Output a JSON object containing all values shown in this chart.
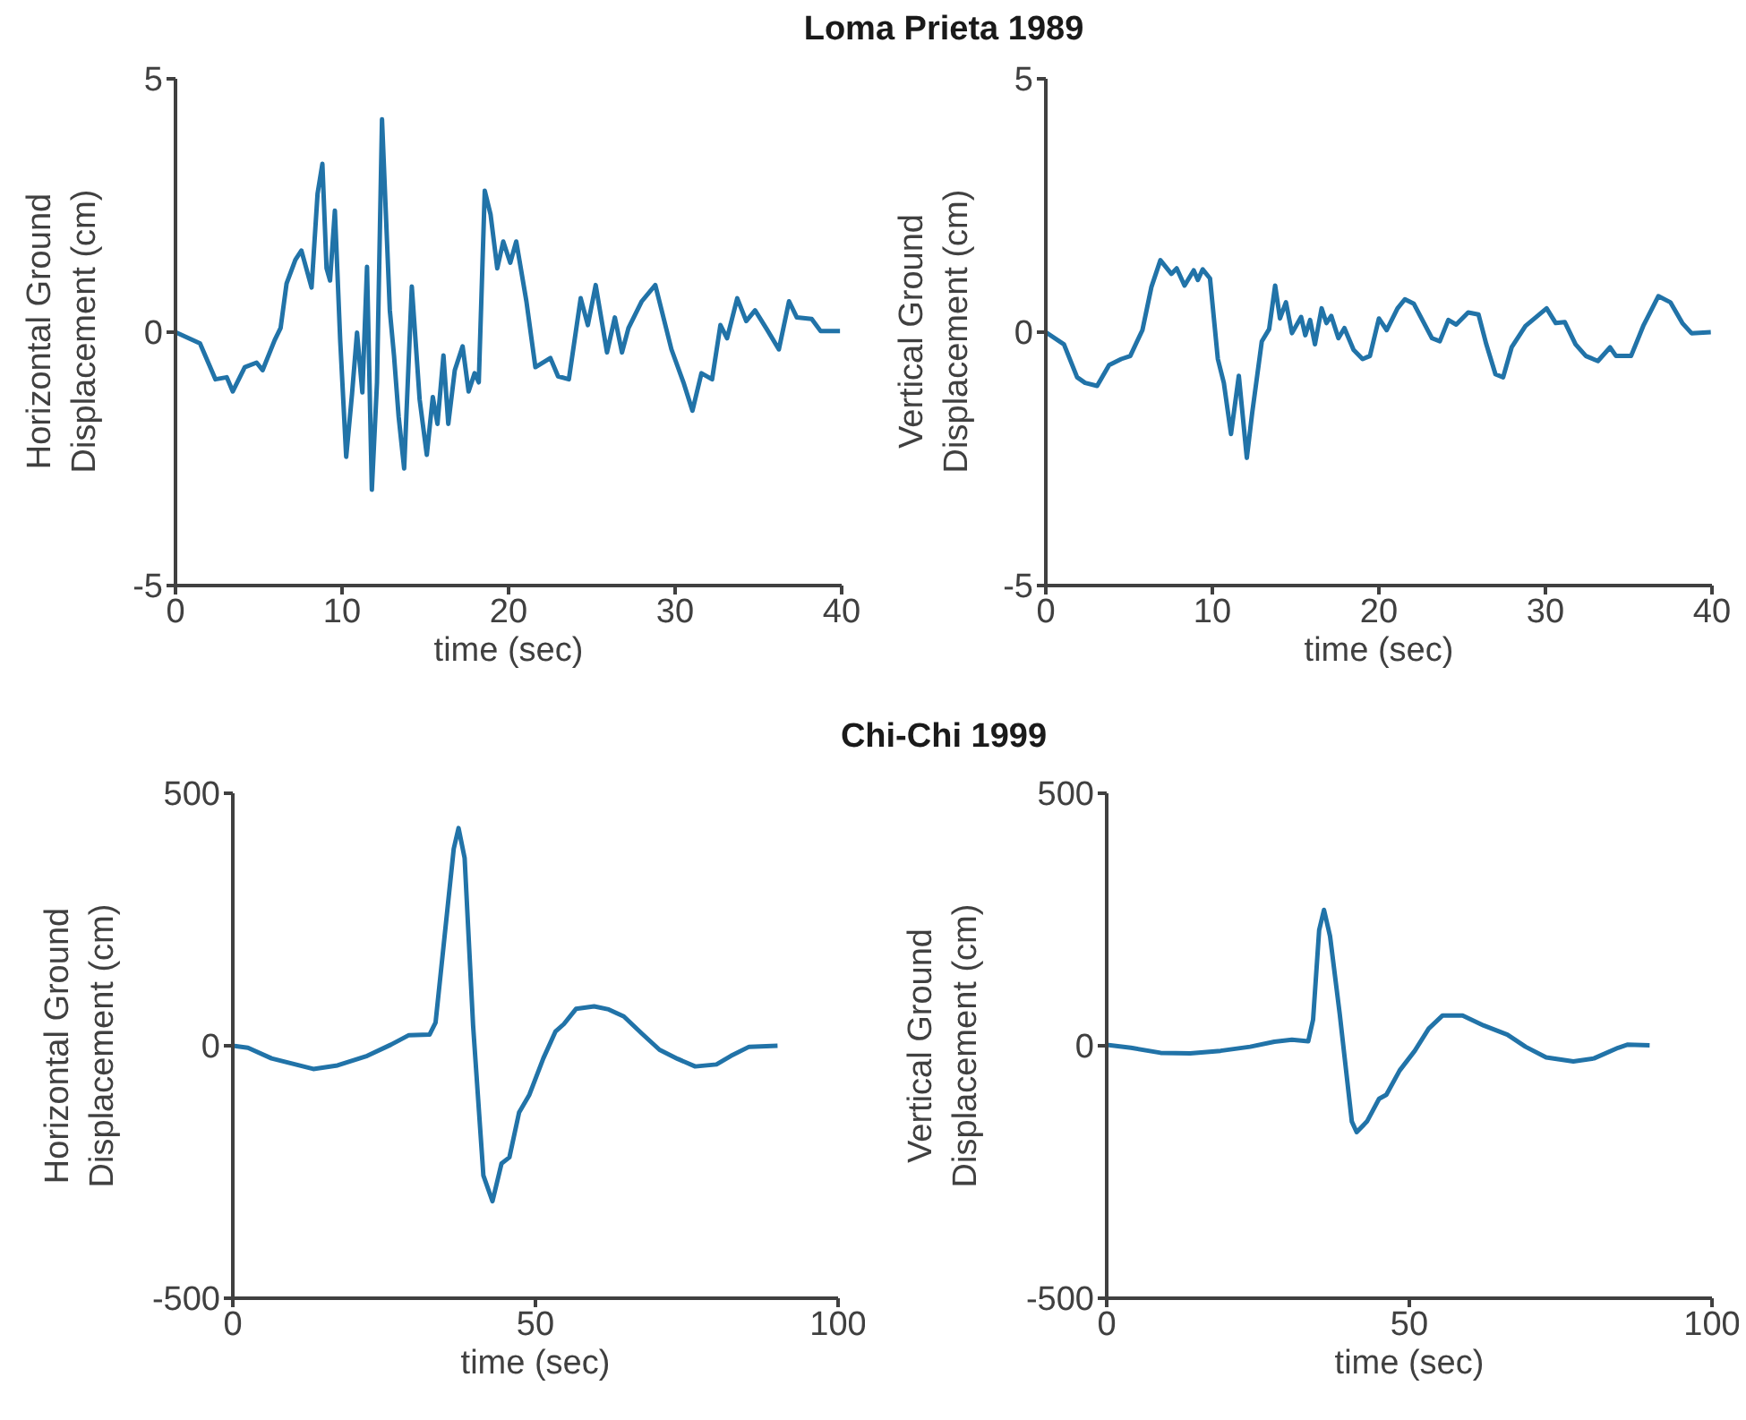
{
  "chart_data": [
    {
      "type": "line",
      "title": "Loma Prieta 1989",
      "xlabel": "time (sec)",
      "ylabel": "Horizontal Ground Displacement (cm)",
      "color": "#2173a8",
      "xlim": [
        0,
        40
      ],
      "ylim": [
        -5,
        5
      ],
      "xticks": [
        0,
        10,
        20,
        30,
        40
      ],
      "yticks": [
        -5,
        0,
        5
      ],
      "x": [
        0,
        1.47,
        2.4,
        3.08,
        3.44,
        4.16,
        4.87,
        5.23,
        5.95,
        6.31,
        6.67,
        7.2,
        7.56,
        8.17,
        8.53,
        8.82,
        9.07,
        9.28,
        9.57,
        9.89,
        10.25,
        10.6,
        10.9,
        11.22,
        11.5,
        11.79,
        12.1,
        12.4,
        12.87,
        13.12,
        13.4,
        13.73,
        14.19,
        14.66,
        15.09,
        15.45,
        15.73,
        16.09,
        16.38,
        16.77,
        17.24,
        17.6,
        17.96,
        18.21,
        18.57,
        18.92,
        19.32,
        19.68,
        20.1,
        20.46,
        21.07,
        21.61,
        22.51,
        22.97,
        23.62,
        24.33,
        24.76,
        25.23,
        25.91,
        26.38,
        26.81,
        27.2,
        28,
        28.81,
        29.78,
        30.5,
        31.04,
        31.58,
        32.22,
        32.72,
        33.12,
        33.73,
        34.27,
        34.8,
        35.52,
        36.23,
        36.84,
        37.31,
        38.2,
        38.74,
        39.9
      ],
      "values": [
        0,
        -0.22,
        -0.93,
        -0.89,
        -1.17,
        -0.69,
        -0.6,
        -0.75,
        -0.16,
        0.08,
        0.96,
        1.43,
        1.61,
        0.88,
        2.73,
        3.32,
        1.26,
        1.02,
        2.4,
        -0.16,
        -2.46,
        -1.22,
        -0.01,
        -1.19,
        1.29,
        -3.11,
        -0.99,
        4.2,
        0.43,
        -0.46,
        -1.67,
        -2.69,
        0.9,
        -1.33,
        -2.42,
        -1.28,
        -1.81,
        -0.46,
        -1.81,
        -0.75,
        -0.28,
        -1.17,
        -0.81,
        -0.99,
        2.79,
        2.32,
        1.26,
        1.79,
        1.37,
        1.79,
        0.61,
        -0.69,
        -0.51,
        -0.87,
        -0.93,
        0.67,
        0.14,
        0.93,
        -0.4,
        0.29,
        -0.4,
        0.08,
        0.61,
        0.93,
        -0.34,
        -0.99,
        -1.55,
        -0.81,
        -0.93,
        0.14,
        -0.12,
        0.67,
        0.22,
        0.43,
        0.05,
        -0.34,
        0.61,
        0.29,
        0.26,
        0.02,
        0.02
      ]
    },
    {
      "type": "line",
      "xlabel": "time (sec)",
      "ylabel": "Vertical Ground Displacement (cm)",
      "color": "#2173a8",
      "xlim": [
        0,
        40
      ],
      "ylim": [
        -5,
        5
      ],
      "xticks": [
        0,
        10,
        20,
        30,
        40
      ],
      "yticks": [
        -5,
        0,
        5
      ],
      "x": [
        0,
        1.09,
        1.88,
        2.36,
        3.08,
        3.8,
        4.53,
        5.07,
        5.8,
        6.34,
        6.88,
        7.54,
        7.86,
        8.33,
        8.88,
        9.13,
        9.42,
        9.86,
        10.33,
        10.69,
        11.12,
        11.59,
        12.07,
        12.39,
        12.97,
        13.41,
        13.77,
        14.06,
        14.42,
        14.78,
        15.33,
        15.58,
        15.87,
        16.16,
        16.56,
        16.85,
        17.14,
        17.57,
        17.93,
        18.48,
        19.02,
        19.46,
        20,
        20.47,
        21.12,
        21.56,
        22.1,
        23.19,
        23.66,
        24.17,
        24.64,
        25.36,
        25.98,
        26.45,
        27,
        27.46,
        27.97,
        28.8,
        30.07,
        30.62,
        31.16,
        31.81,
        32.43,
        33.15,
        33.88,
        34.24,
        35.14,
        35.87,
        36.78,
        37.5,
        38.22,
        38.77,
        39.93
      ],
      "values": [
        0,
        -0.24,
        -0.89,
        -1,
        -1.06,
        -0.65,
        -0.53,
        -0.47,
        0.04,
        0.89,
        1.42,
        1.15,
        1.26,
        0.92,
        1.22,
        1.03,
        1.24,
        1.06,
        -0.53,
        -1,
        -2.01,
        -0.86,
        -2.48,
        -1.6,
        -0.18,
        0.06,
        0.92,
        0.27,
        0.59,
        -0.02,
        0.3,
        -0.06,
        0.24,
        -0.24,
        0.47,
        0.18,
        0.32,
        -0.12,
        0.08,
        -0.35,
        -0.53,
        -0.47,
        0.27,
        0.04,
        0.47,
        0.65,
        0.56,
        -0.12,
        -0.18,
        0.24,
        0.15,
        0.39,
        0.35,
        -0.24,
        -0.83,
        -0.89,
        -0.3,
        0.12,
        0.47,
        0.18,
        0.2,
        -0.24,
        -0.47,
        -0.57,
        -0.3,
        -0.47,
        -0.47,
        0.12,
        0.71,
        0.59,
        0.18,
        -0.02,
        0
      ]
    },
    {
      "type": "line",
      "title": "Chi-Chi 1999",
      "xlabel": "time (sec)",
      "ylabel": "Horizontal Ground Displacement (cm)",
      "color": "#2173a8",
      "xlim": [
        0,
        100
      ],
      "ylim": [
        -500,
        500
      ],
      "xticks": [
        0,
        50,
        100
      ],
      "yticks": [
        -500,
        0,
        500
      ],
      "x": [
        0,
        2.5,
        6.4,
        13.3,
        17.3,
        22.2,
        26.1,
        29.1,
        32.5,
        33.5,
        35,
        36.5,
        37.3,
        38.3,
        39.7,
        41.4,
        42.9,
        44.4,
        45.7,
        47.3,
        49,
        51.3,
        53.3,
        54.7,
        56.7,
        59.7,
        62.1,
        64.6,
        67.6,
        70.5,
        73.5,
        76.4,
        79.9,
        82.3,
        85.3,
        90
      ],
      "values": [
        0,
        -4,
        -25,
        -46,
        -39,
        -20,
        2,
        21,
        22,
        46,
        218,
        390,
        431,
        372,
        40,
        -257,
        -308,
        -233,
        -221,
        -132,
        -97,
        -25,
        28,
        43,
        73,
        78,
        72,
        58,
        24,
        -8,
        -26,
        -41,
        -37,
        -20,
        -2,
        0
      ]
    },
    {
      "type": "line",
      "xlabel": "time (sec)",
      "ylabel": "Vertical Ground Displacement (cm)",
      "color": "#2173a8",
      "xlim": [
        0,
        100
      ],
      "ylim": [
        -500,
        500
      ],
      "xticks": [
        0,
        50,
        100
      ],
      "yticks": [
        -500,
        0,
        500
      ],
      "x": [
        0,
        4,
        8.9,
        13.8,
        18.8,
        23.7,
        27.7,
        30.6,
        33.3,
        34.1,
        35.1,
        35.9,
        36.9,
        38.5,
        40.5,
        41.3,
        43,
        45,
        46.2,
        48.4,
        50.9,
        53.2,
        55.5,
        58.8,
        62.3,
        66.2,
        69.2,
        72.6,
        77.1,
        80.5,
        84.5,
        86,
        89.7
      ],
      "values": [
        2,
        -4,
        -14,
        -15,
        -10,
        -2,
        8,
        12,
        9,
        52,
        229,
        269,
        217,
        63,
        -150,
        -171,
        -150,
        -105,
        -97,
        -49,
        -10,
        34,
        60,
        60,
        40,
        22,
        -2,
        -23,
        -31,
        -25,
        -4,
        2,
        1
      ]
    }
  ]
}
